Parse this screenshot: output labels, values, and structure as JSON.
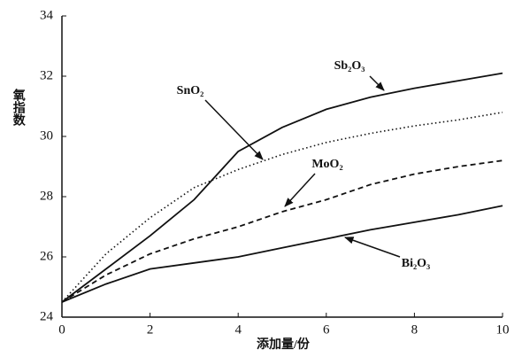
{
  "chart_data": {
    "type": "line",
    "x_label": "添加量/份",
    "y_label": "氧指数",
    "x": [
      0,
      1,
      2,
      3,
      4,
      5,
      6,
      7,
      8,
      9,
      10
    ],
    "series": [
      {
        "name": "Sb₂O₃",
        "color": "#111111",
        "style": "solid",
        "values": [
          24.5,
          25.6,
          26.7,
          27.9,
          29.5,
          30.3,
          30.9,
          31.3,
          31.6,
          31.85,
          32.1
        ]
      },
      {
        "name": "SnO₂",
        "color": "#111111",
        "style": "dotted",
        "values": [
          24.5,
          26.1,
          27.3,
          28.3,
          28.9,
          29.4,
          29.8,
          30.1,
          30.35,
          30.55,
          30.8
        ]
      },
      {
        "name": "MoO₂",
        "color": "#111111",
        "style": "dashed",
        "values": [
          24.5,
          25.4,
          26.1,
          26.6,
          27.0,
          27.5,
          27.9,
          28.4,
          28.75,
          29.0,
          29.2
        ]
      },
      {
        "name": "Bi₂O₃",
        "color": "#111111",
        "style": "solid",
        "values": [
          24.5,
          25.1,
          25.6,
          25.8,
          26.0,
          26.3,
          26.6,
          26.9,
          27.15,
          27.4,
          27.7
        ]
      }
    ],
    "xlim": [
      0,
      10
    ],
    "xticks": [
      0,
      2,
      4,
      6,
      8,
      10
    ],
    "ylim": [
      24,
      34
    ],
    "yticks": [
      24,
      26,
      28,
      30,
      32,
      34
    ]
  }
}
